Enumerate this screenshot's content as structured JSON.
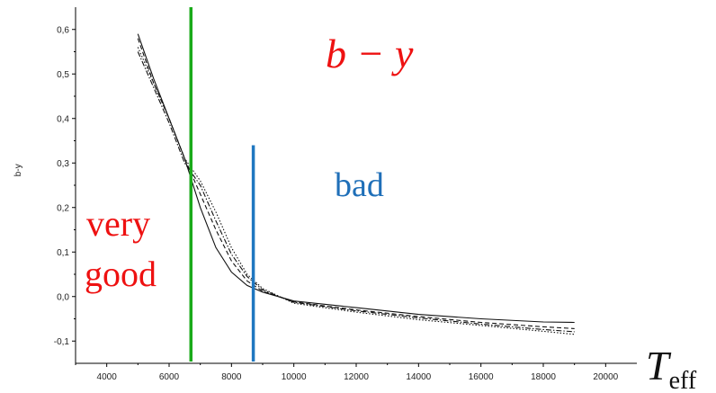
{
  "chart_data": {
    "type": "line",
    "title": "",
    "xlabel": "",
    "ylabel": "b-y",
    "xlim": [
      3000,
      21000
    ],
    "ylim": [
      -0.15,
      0.65
    ],
    "x_ticks": [
      4000,
      6000,
      8000,
      10000,
      12000,
      14000,
      16000,
      18000,
      20000
    ],
    "y_ticks": [
      -0.1,
      0.0,
      0.1,
      0.2,
      0.3,
      0.4,
      0.5,
      0.6
    ],
    "x_tick_labels": [
      "4000",
      "6000",
      "8000",
      "10000",
      "12000",
      "14000",
      "16000",
      "18000",
      "20000"
    ],
    "y_tick_labels": [
      "-0,1",
      "0,0",
      "0,1",
      "0,2",
      "0,3",
      "0,4",
      "0,5",
      "0,6"
    ],
    "grid": false,
    "series": [
      {
        "style": "solid",
        "x": [
          5000,
          5500,
          6000,
          6500,
          7000,
          7500,
          8000,
          8500,
          9000,
          10000,
          12000,
          14000,
          16000,
          18000,
          19000
        ],
        "y": [
          0.59,
          0.49,
          0.4,
          0.31,
          0.2,
          0.11,
          0.055,
          0.025,
          0.01,
          -0.01,
          -0.025,
          -0.04,
          -0.05,
          -0.057,
          -0.058
        ]
      },
      {
        "style": "dash",
        "x": [
          5000,
          5500,
          6000,
          6500,
          7000,
          7500,
          8000,
          8500,
          9000,
          10000,
          12000,
          14000,
          16000,
          18000,
          19000
        ],
        "y": [
          0.58,
          0.48,
          0.4,
          0.31,
          0.23,
          0.15,
          0.08,
          0.035,
          0.012,
          -0.012,
          -0.03,
          -0.045,
          -0.058,
          -0.068,
          -0.072
        ]
      },
      {
        "style": "dot",
        "x": [
          5000,
          5500,
          6000,
          6500,
          7000,
          7500,
          8000,
          8500,
          9000,
          10000,
          12000,
          14000,
          16000,
          18000,
          19000
        ],
        "y": [
          0.56,
          0.48,
          0.4,
          0.31,
          0.26,
          0.19,
          0.11,
          0.05,
          0.018,
          -0.015,
          -0.035,
          -0.052,
          -0.065,
          -0.078,
          -0.085
        ]
      },
      {
        "style": "dashdot",
        "x": [
          5000,
          5500,
          6000,
          6500,
          7000,
          7500,
          8000,
          8500,
          9000,
          10000,
          12000,
          14000,
          16000,
          18000,
          19000
        ],
        "y": [
          0.55,
          0.47,
          0.39,
          0.3,
          0.25,
          0.17,
          0.095,
          0.045,
          0.015,
          -0.013,
          -0.032,
          -0.048,
          -0.062,
          -0.074,
          -0.079
        ]
      }
    ],
    "reference_lines": [
      {
        "x": 6700,
        "y_from": -0.15,
        "y_to": 0.65,
        "color": "#1aaa1a"
      },
      {
        "x": 8700,
        "y_from": -0.15,
        "y_to": 0.34,
        "color": "#1f77c0"
      }
    ],
    "annotations": [
      {
        "text": "b − y",
        "color": "#ee1111"
      },
      {
        "text": "bad",
        "color": "#1f6fb8"
      },
      {
        "text": "very",
        "color": "#ee1111"
      },
      {
        "text": "good",
        "color": "#ee1111"
      },
      {
        "text": "T",
        "sub": "eff",
        "color": "#111111"
      }
    ]
  }
}
